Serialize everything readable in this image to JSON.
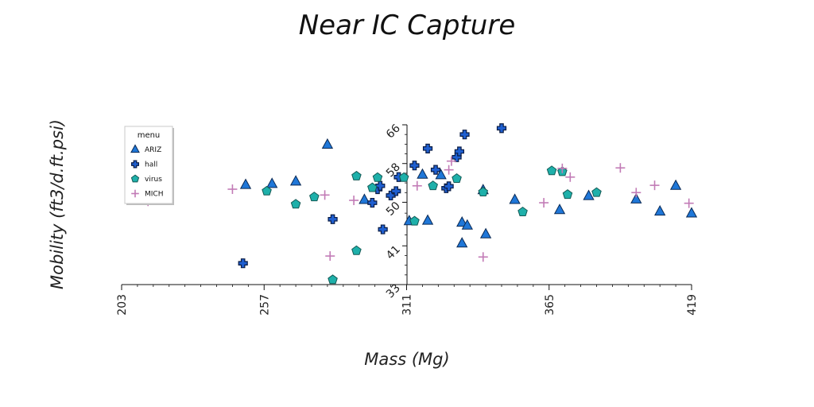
{
  "chart_data": {
    "type": "scatter",
    "title": "Near IC Capture",
    "xlabel": "Mass (Mg)",
    "ylabel": "Mobility (ft3/d.ft.psi)",
    "xlim": [
      203,
      419
    ],
    "ylim": [
      33,
      66
    ],
    "x_ticks": [
      "203",
      "257",
      "311",
      "365",
      "419"
    ],
    "y_ticks": [
      "33",
      "41",
      "50",
      "58",
      "66"
    ],
    "grid": false,
    "legend": {
      "title": "menu",
      "position": "left"
    },
    "series": [
      {
        "name": "ARIZ",
        "marker": "triangle",
        "color": "#1f77d8",
        "points": [
          [
            250,
            53.6
          ],
          [
            260,
            53.8
          ],
          [
            269,
            54.3
          ],
          [
            281,
            61.9
          ],
          [
            295,
            50.5
          ],
          [
            312,
            46.1
          ],
          [
            317,
            55.7
          ],
          [
            319,
            46.2
          ],
          [
            324,
            55.6
          ],
          [
            332,
            45.8
          ],
          [
            332,
            41.5
          ],
          [
            334,
            45.2
          ],
          [
            340,
            52.5
          ],
          [
            341,
            43.4
          ],
          [
            352,
            50.5
          ],
          [
            369,
            48.4
          ],
          [
            380,
            51.3
          ],
          [
            398,
            50.6
          ],
          [
            407,
            48.1
          ],
          [
            413,
            53.4
          ],
          [
            419,
            47.7
          ]
        ]
      },
      {
        "name": "hall",
        "marker": "plus",
        "color": "#1f5fd0",
        "points": [
          [
            249,
            37.4
          ],
          [
            283,
            46.5
          ],
          [
            298,
            49.9
          ],
          [
            300,
            52.7
          ],
          [
            301,
            53.4
          ],
          [
            302,
            44.4
          ],
          [
            305,
            51.4
          ],
          [
            307,
            52.3
          ],
          [
            308,
            55.2
          ],
          [
            314,
            57.6
          ],
          [
            319,
            61.1
          ],
          [
            322,
            56.7
          ],
          [
            326,
            52.9
          ],
          [
            327,
            53.3
          ],
          [
            330,
            59.3
          ],
          [
            331,
            60.5
          ],
          [
            333,
            64.0
          ],
          [
            347,
            65.3
          ]
        ]
      },
      {
        "name": "virus",
        "marker": "pentagon",
        "color": "#1eb0aa",
        "points": [
          [
            258,
            52.3
          ],
          [
            269,
            49.6
          ],
          [
            276,
            51.1
          ],
          [
            283,
            34.0
          ],
          [
            292,
            55.4
          ],
          [
            292,
            40.0
          ],
          [
            298,
            53.0
          ],
          [
            300,
            55.1
          ],
          [
            310,
            55.1
          ],
          [
            314,
            46.1
          ],
          [
            321,
            53.4
          ],
          [
            330,
            54.9
          ],
          [
            340,
            52.1
          ],
          [
            355,
            48.0
          ],
          [
            366,
            56.5
          ],
          [
            370,
            56.3
          ],
          [
            372,
            51.6
          ],
          [
            383,
            52.0
          ]
        ]
      },
      {
        "name": "MICH",
        "marker": "cross",
        "color": "#c27bb6",
        "points": [
          [
            213,
            50.2
          ],
          [
            245,
            52.7
          ],
          [
            280,
            51.5
          ],
          [
            282,
            38.9
          ],
          [
            291,
            50.4
          ],
          [
            315,
            53.4
          ],
          [
            327,
            56.7
          ],
          [
            328,
            58.5
          ],
          [
            340,
            38.7
          ],
          [
            363,
            49.9
          ],
          [
            370,
            57.0
          ],
          [
            373,
            55.2
          ],
          [
            392,
            57.1
          ],
          [
            398,
            52.0
          ],
          [
            405,
            53.5
          ],
          [
            418,
            49.8
          ]
        ]
      }
    ]
  }
}
